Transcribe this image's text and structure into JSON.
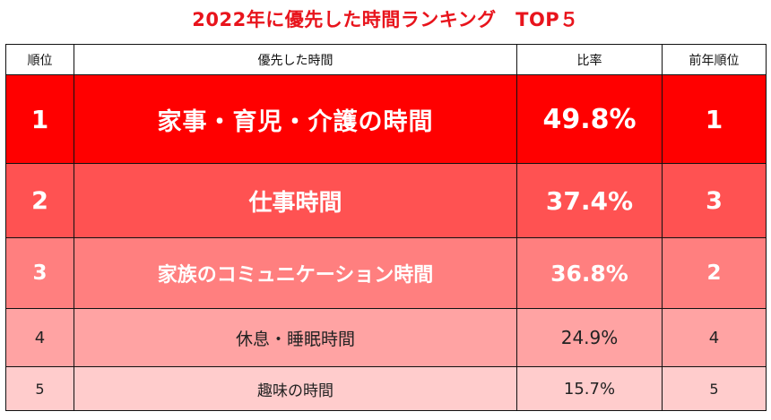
{
  "title": "2022年に優先した時間ランキング　TOP５",
  "table": {
    "headers": {
      "rank": "順位",
      "item": "優先した時間",
      "ratio": "比率",
      "previous_rank": "前年順位"
    },
    "rows": [
      {
        "rank": "1",
        "item": "家事・育児・介護の時間",
        "ratio": "49.8%",
        "previous_rank": "1",
        "ratio_value": 49.8
      },
      {
        "rank": "2",
        "item": "仕事時間",
        "ratio": "37.4%",
        "previous_rank": "3",
        "ratio_value": 37.4
      },
      {
        "rank": "3",
        "item": "家族のコミュニケーション時間",
        "ratio": "36.8%",
        "previous_rank": "2",
        "ratio_value": 36.8
      },
      {
        "rank": "4",
        "item": "休息・睡眠時間",
        "ratio": "24.9%",
        "previous_rank": "4",
        "ratio_value": 24.9
      },
      {
        "rank": "5",
        "item": "趣味の時間",
        "ratio": "15.7%",
        "previous_rank": "5",
        "ratio_value": 15.7
      }
    ]
  },
  "colors": {
    "title": "#e8141c",
    "row_1": "#ff0000",
    "row_2": "#ff5252",
    "row_3": "#ff7f7f",
    "row_4": "#ffa3a3",
    "row_5": "#ffcccc",
    "border": "#111111"
  }
}
